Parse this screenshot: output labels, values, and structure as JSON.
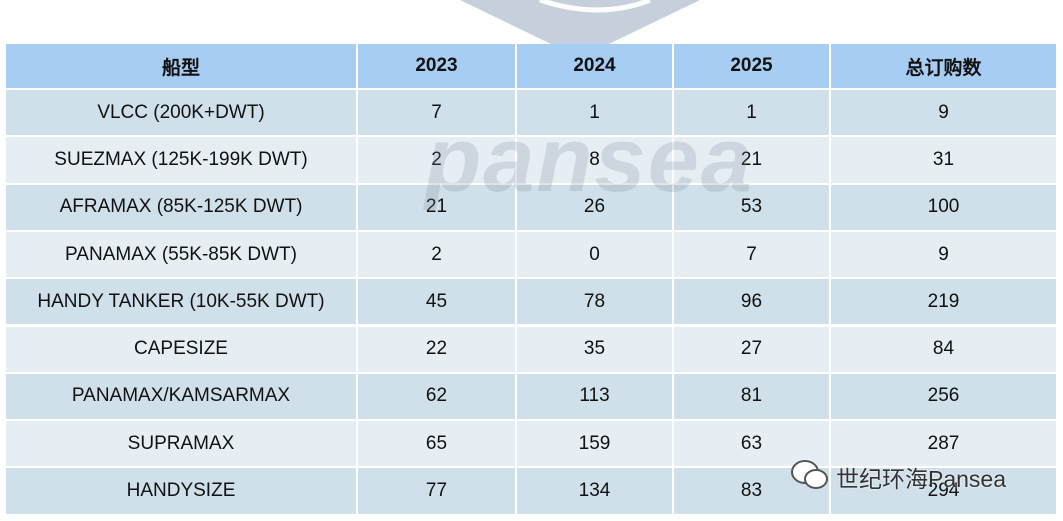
{
  "table": {
    "header": [
      "船型",
      "2023",
      "2024",
      "2025",
      "总订购数"
    ],
    "rows": [
      [
        "VLCC (200K+DWT)",
        7,
        1,
        1,
        9
      ],
      [
        "SUEZMAX (125K-199K DWT)",
        2,
        8,
        21,
        31
      ],
      [
        "AFRAMAX (85K-125K DWT)",
        21,
        26,
        53,
        100
      ],
      [
        "PANAMAX (55K-85K DWT)",
        2,
        0,
        7,
        9
      ],
      [
        "HANDY TANKER (10K-55K DWT)",
        45,
        78,
        96,
        219
      ],
      [
        "CAPESIZE",
        22,
        35,
        27,
        84
      ],
      [
        "PANAMAX/KAMSARMAX",
        62,
        113,
        81,
        256
      ],
      [
        "SUPRAMAX",
        65,
        159,
        63,
        287
      ],
      [
        "HANDYSIZE",
        77,
        134,
        83,
        294
      ]
    ]
  },
  "watermark": {
    "logo_text": "pansea",
    "caption": "世纪环海Pansea"
  }
}
